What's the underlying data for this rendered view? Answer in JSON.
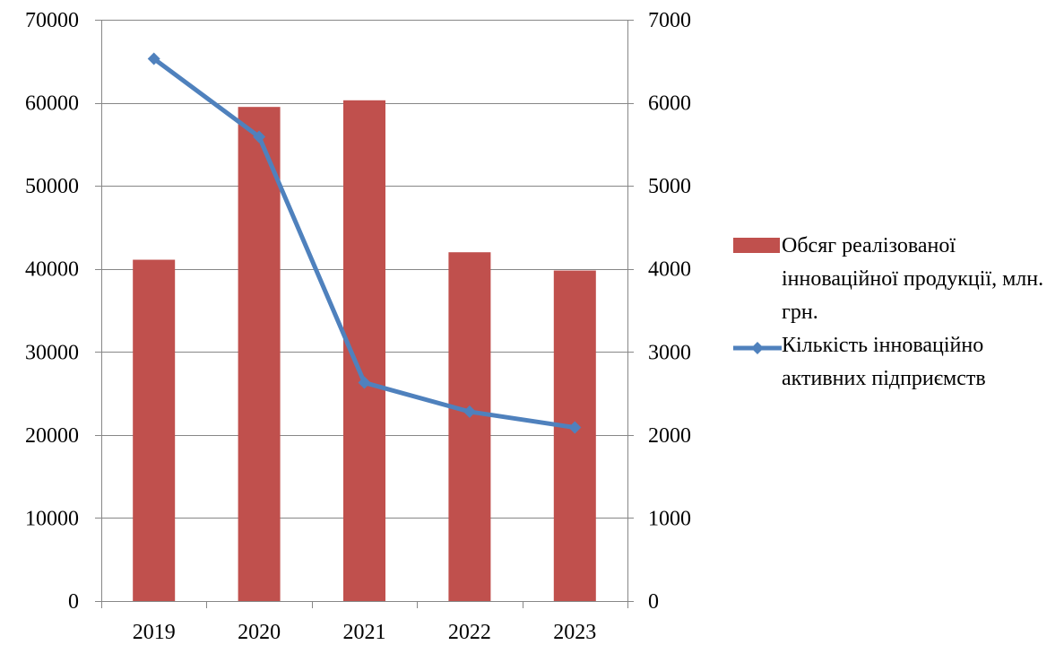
{
  "chart_data": {
    "type": "bar",
    "categories": [
      "2019",
      "2020",
      "2021",
      "2022",
      "2023"
    ],
    "series": [
      {
        "name": "Обсяг реалізованої інноваційної продукції, млн. грн.",
        "type": "bar",
        "axis": "left",
        "values": [
          41100,
          59500,
          60300,
          42000,
          39800
        ],
        "color": "#C0504D"
      },
      {
        "name": "Кількість інноваційно активних підприємств",
        "type": "line",
        "axis": "right",
        "marker": "diamond",
        "values": [
          6530,
          5590,
          2630,
          2280,
          2090
        ],
        "color": "#4F81BD"
      }
    ],
    "y_left": {
      "ylim": [
        0,
        70000
      ],
      "ticks": [
        "0",
        "10000",
        "20000",
        "30000",
        "40000",
        "50000",
        "60000",
        "70000"
      ]
    },
    "y_right": {
      "ylim": [
        0,
        7000
      ],
      "ticks": [
        "0",
        "1000",
        "2000",
        "3000",
        "4000",
        "5000",
        "6000",
        "7000"
      ]
    },
    "grid": true,
    "legend_position": "right",
    "title": "",
    "xlabel": "",
    "ylabel": ""
  },
  "legend": {
    "bar_label": "Обсяг реалізованої інноваційної продукції, млн. грн.",
    "line_label": "Кількість інноваційно активних підприємств"
  },
  "colors": {
    "grid": "#878787",
    "axis": "#878787",
    "bar": "#C0504D",
    "line": "#4F81BD"
  }
}
